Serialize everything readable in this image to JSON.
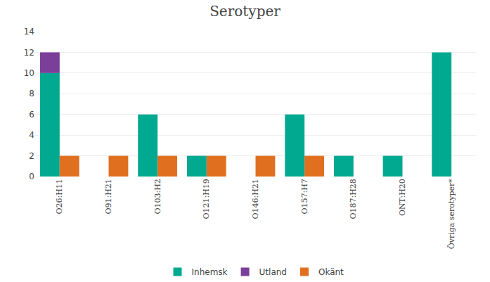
{
  "chart_data": {
    "type": "bar",
    "title": "Serotyper",
    "categories": [
      "O26:H11",
      "O91:H21",
      "O103:H2",
      "O121:H19",
      "O146:H21",
      "O157:H7",
      "O187:H28",
      "ONT:H20",
      "Övriga serotyper*"
    ],
    "series": [
      {
        "name": "Inhemsk",
        "color": "#00a98f",
        "values": [
          10,
          0,
          6,
          2,
          0,
          6,
          2,
          2,
          12
        ]
      },
      {
        "name": "Utland",
        "color": "#7b3f99",
        "values": [
          2,
          0,
          0,
          0,
          0,
          0,
          0,
          0,
          0
        ]
      },
      {
        "name": "Okänt",
        "color": "#e07020",
        "values": [
          2,
          2,
          2,
          2,
          2,
          2,
          0,
          0,
          0
        ]
      }
    ],
    "stacked": true,
    "ylim": [
      0,
      14
    ],
    "yticks": [
      0,
      2,
      4,
      6,
      8,
      10,
      12,
      14
    ],
    "grid": true,
    "legend": "bottom"
  }
}
